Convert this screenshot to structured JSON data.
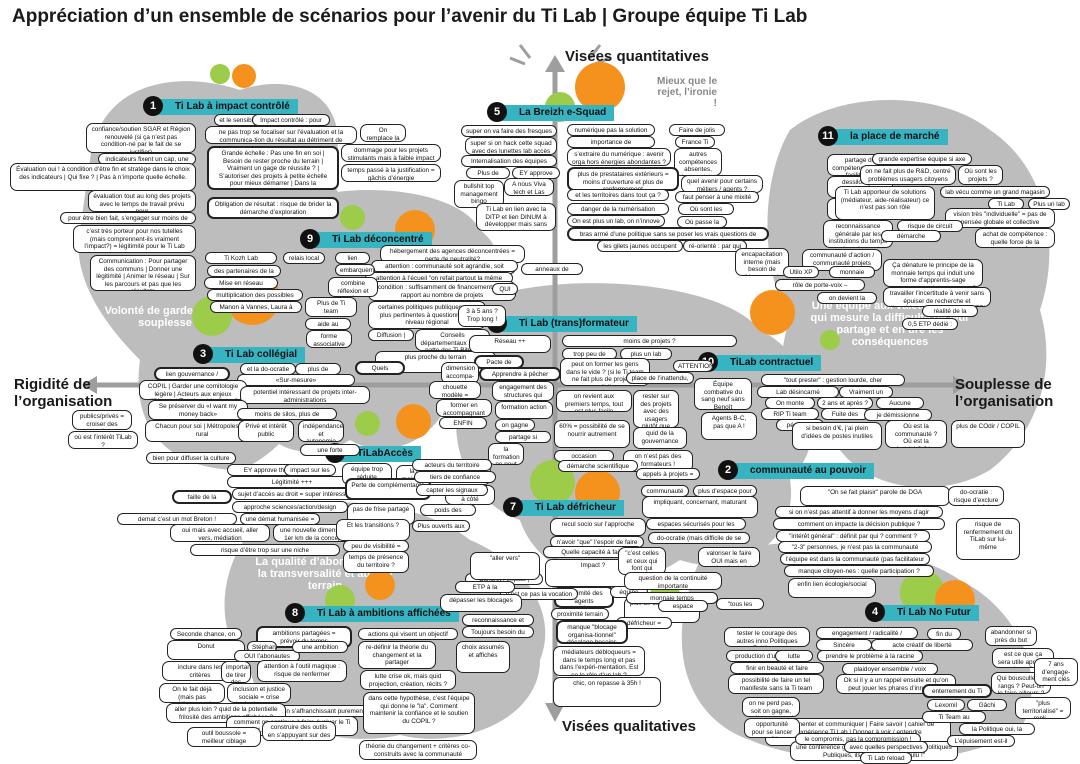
{
  "title": "Appréciation d’un ensemble de scénarios pour l’avenir du Ti Lab | Groupe équipe Ti Lab",
  "axes": {
    "top": "Visées quantitatives",
    "bottom": "Visées qualitatives",
    "left": "Rigidité de l’organisation",
    "right": "Souplesse de l’organisation"
  },
  "colors": {
    "orange": "#f5921e",
    "green": "#9ccc4a",
    "cyan": "#37b4c2",
    "gray": "#bdbdbd"
  },
  "overlays": {
    "volonte": "Volonté de garder de la souplesse",
    "qualite": "La qualité d’abord, grâce à la transversalité et au lien terrain",
    "equipe": "Une équipe aux valeurs fortes qui mesure la difficulté de leur partage et en tire les conséquences",
    "mieux": "Mieux que le rejet, l’ironie !"
  },
  "scenarios": [
    {
      "n": "1",
      "label": "Ti Lab à impact contrôlé"
    },
    {
      "n": "2",
      "label": "communauté au pouvoir"
    },
    {
      "n": "3",
      "label": "Ti Lab collégial"
    },
    {
      "n": "4",
      "label": "Ti Lab No Futur"
    },
    {
      "n": "5",
      "label": "La Breizh e-Squad"
    },
    {
      "n": "6",
      "label": "TiLabAccès"
    },
    {
      "n": "7",
      "label": "Ti Lab défricheur"
    },
    {
      "n": "8",
      "label": "Ti Lab à ambitions affichées"
    },
    {
      "n": "9",
      "label": "Ti Lab déconcentré"
    },
    {
      "n": "10",
      "label": "TiLab contractuel"
    },
    {
      "n": "11",
      "label": "la place de marché"
    },
    {
      "n": "12",
      "label": "Ti Lab (trans)formateur"
    }
  ],
  "notes": [
    "confiance/soutien SGAR et Région renouvelé (si ça n’est pas condition-né par le fait de se justifier)",
    "indicateurs fixent un cap, une orientation",
    "Évaluation oui ! à condition d’être fin et stratège dans le choix des indicateurs | Qui fixe ? | Pas à n’importe quelle échelle.",
    "évaluation tout au long des projets avec le temps de travail prévu pour",
    "pour être bien fait, s’engager sur moins de projets",
    "c’est très porteur pour nos tutelles (mais comprennent-ils vraiment l’impact?) = légitimité pour le Ti Lab",
    "Communication : Pour partager des communs | Donner une légitimité | Animer le réseau | Sur les parcours et pas que les résultats",
    "et le sensible dans tout ça ?",
    "Impact contrôlé : pour qui ? liberté ?",
    "ne pas trop se focaliser sur l’évaluation et la communica-tion du résultat au détriment de l’exploration",
    "On remplace la tranche",
    "Grande échelle : Pas une fin en soi | Besoin de rester proche du terrain | Vraiment un gage de réussite ? | S’autoriser des projets à petite échelle pour mieux démarrer | Dans la différenciation | Pas armé",
    "dommage pour les projets stimulants mais à faible impact",
    "temps passé à la justification = gâchis d’énergie",
    "Obligation de résultat : risque de brider la démarche d’exploration",
    "super on va faire des fresques !",
    "super si on hack cette squad avec des lunettes lab accès",
    "Internalisation des équipes",
    "Plus de prise de tête",
    "EY approve this !",
    "bullshit top management bingo",
    "A nous Viva tech et Las Vegas",
    "Ti Lab en lien avec la DITP et lien DINUM à développer mais sans se perdre",
    "numérique pas la solution à tout",
    "Faire de jolis sites ?",
    "importance de l’observation sur le terrain",
    "France Ti Lab",
    "s’extraire du numérique : avenir orga hors énergies abondantes ?",
    "autres compétences absentes, dont sociales",
    "plus de prestataires extérieurs = moins d’ouverture et plus de renfermement",
    "quel avenir pour certains métiers / agents ?",
    "et les territoires dans tout ça ?",
    "faut penser à une mixité autre",
    "danger de la numérisation massive",
    "Où sont les gens ?",
    "On est plus un lab, on n’innove plus,",
    "Où passe la Ti Team ?",
    "bras armé d’une politique sans se poser les vrais questions de terrain",
    "les gilets jaunes occupent le Ti Lab",
    "ré-orienté : par qui ?",
    "partage de compétences sur la facilitation",
    "dessilotage / coopérations publiques",
    "sécuriser l’implication des pros de l’action publique",
    "reconnaissance générale par les institutions du temps passé sur les projets d’innovation",
    "grande expertise équipe si axe unique",
    "on ne fait plus de R&D, centré problèmes usagers citoyens",
    "Où sont les projets ?",
    "Ti Lab apporteur de solutions (médiateur, aide-réalisateur) ce n’est pas son rôle",
    "lab vécu comme un grand magasin",
    "Ti Lab n’est pas Utilo",
    "Plus un lab",
    "vision très \"individuelle\" = pas de pensée globale et collective",
    "risque de circuit fermé",
    "achat de compétence : quelle force de la commu ?",
    "démarche obsolète",
    "encapacitation interne (mais besoin de l’éprouvette)",
    "communauté d’action / communauté projets",
    "Utilo XP !",
    "monnaie temps",
    "rôle de porte-voix – plaidoyer",
    "on devient la DITP",
    "Ça dénature le principe de la monnaie temps qui induit une forme d’apprentis-sage commun entre les gens, non ?",
    "travailler l’incertitude à venir sans épuiser de recherche et d’expérimentation ?! PASSEISTE!",
    "réalité de la régulation = le quoi ?!",
    "0,5 ETP dédié : qui ?",
    "hébergement des agences déconcentrées = perte de neutralité?",
    "quelle gouvernance ?",
    "attention : communauté soit agrandie, soit noyée",
    "attention à l’écueil \"on refait partout la même chose\"",
    "anneaux de Sauron",
    "condition : suffisamment de financements par rapport au nombre de projets",
    "QUI ?",
    "certaines politiques publiques sont plus pertinentes à questionner au niveau régional",
    "3 à 5 ans ? Trop long !",
    "Diffusion | Dissolution",
    "Conseils départementaux 3eme patte des Ti-Bihans",
    "plus proche du terrain",
    "Ti Kozh Lab",
    "relais local",
    "lien gouvernance",
    "des partenaires de la légitimité",
    "Mise en réseau",
    "embarquement des acteurs locaux",
    "multiplication des possibles",
    "combine réflexion et action",
    "Manon à Vannes, Laura à Brest !",
    "Plus de Ti team",
    "aide au passage à l’échelle",
    "forme associative",
    "et la do-ocratie ?",
    "plus de moyens, plus de Ti-team",
    "lien gouvernance / intérêt / connaissance du terrain",
    "«Sur-mesure»",
    "Quels \"devoirs aux membres\" ? Quelle implication ?",
    "COPIL | Garder une comitologie légère | Acteurs aux enjeux différents | Trop lourd à piloter ?",
    "potentiel intéressant de projets inter-administrations",
    "Se préserver du «I want my money back»",
    "moins de silos, plus de coopérations",
    "publics/privés = croiser des avancées en matière de responsabi-lité sociétale des organisations",
    "Chacun pour soi | Métropoles VS rural",
    "Privé et intérêt public",
    "indépendance et autonomie #BZH",
    "où est l’intérêt TiLab ?",
    "une forte légitimité",
    "bien pour diffuser la culture \"lab\" : le centré usagers",
    "Réseau ++",
    "Pacte de transformation",
    "Apprendre à pêcher",
    "dimension accompa-gnateurs de projets",
    "chouette modèle = INNO->TRANSFO",
    "former en accompagnant",
    "ENFIN formation des agents avec nouveaux enjeux",
    "engagement des structures qui envoient les agents",
    "formation action",
    "on gagne en légitimité",
    "partage si formation = transformation",
    "la formation ne peut être qu’une des dimensions du Ti Lab",
    "moins de projets ?",
    "trop peu de terrain",
    "plus un lab",
    "ATTENTION à ne pas faire porter aux agents ce dont ils ne sont pas responsables",
    "peut on former les gens dans le vide ? (si le Ti team ne fait plus de projets à côté)",
    "on revient aux premiers temps, tout est plus facile",
    "rester sur des projets avec des usagers plutôt que de faire du dépannage interne",
    "60% = possibilité de se nourrir autrement",
    "quid de la gouvernance",
    "occasion réflexion plus large sur le travail",
    "on n’est pas des formateurs !",
    "démarche scientifique",
    "EY approve this !",
    "impact sur les politiques publiques",
    "Légitimité +++",
    "faille de la numérisation reconnue",
    "sujet d’accès au droit = super intéressant",
    "approche sciences/action/design reconnue",
    "demat c’est un mot Breton !",
    "une démat humanisée = des humains non dématérialisés",
    "oui mais avec accueil, aller vers, médiation",
    "une nouvelle dimension du 1er km de la conception",
    "risque d’être trop sur une niche",
    "équipe trop réduite (projets, chercheurs, designers, doc…)",
    "la démarche lab devient moins importante que le sujet",
    "Perte de complémentarité",
    "C’est passer à côté d’enjeux primordiaux",
    "pas de frise partagé",
    "poids des résultats? Vs capacité à faire savoir, diffuser",
    "Et les transitions ?",
    "Plus ouverts aux autres besoins des usagers",
    "peu de visibilité = peu de légitimité à faire ricochet",
    "temps de présence du territoire ?",
    "recul socio sur l’approche",
    "n’avoir \"que\" l’espoir de faire bouger les choses risque de ne pas être très efficace…",
    "Quelle capacité à faire remonter ?",
    "Impact ?",
    "légitimité des agents partenaires non intégrés",
    "équipe trop petite",
    "plus de documentation",
    "proximité terrain | 1er km",
    "défricheur = ouvre des voies, ose",
    "Concret | Impact | terreau fertile",
    "n’est ce pas la vocation d’un lab que de tester sur des petites échelles ?",
    "acteurs du territoire",
    "tiers de confiance",
    "capter les signaux faibles",
    "\"aller vers\"",
    "ETP à la coordination",
    "dépasser les blocages",
    "reconnaissance et coopération des autres admins",
    "Toujours besoin du lieu et de la communauté",
    "manque \"blocage organisa-tionnel\" décalage besoins ETP et versements financiers",
    "médiateurs débloqueurs = dans le temps long et pas dans l’expéri-mentation. Est ce le rôle d’un lab ?",
    "chic, on repasse à 35h !",
    "place de l’inattendu, plus de liberté en dehors du lab",
    "Équipe combative du sang neuf sans Benoît",
    "Agents B-C, pas que A !",
    "appels à projets = solutions VS lab = problèmes",
    "\"tout prester\" : gestion lourde, cher",
    "Lab désincarné",
    "Vraiment un lab ?",
    "On monte notre boîte",
    "2 ans et après ?",
    "Aucune ambition",
    "RIP Ti team",
    "Fuite des compétences",
    "je démissionne",
    "pérennité des missions pas tenable face à l’évolution des enjeux = RIDICULE !!",
    "si besoin d’€, j’ai plein d’idées de postes inutiles",
    "Où est la communauté ? Où est la créativité ? Où est la stimulation ?",
    "plus de COdir / COPIL",
    "communauté = partage",
    "plus d’espace pour les membres de la communauté de s’exprimer sur les projets",
    "impliquant, concernant, maturant",
    "espaces sécurisés pour les chercheurs et agents",
    "do-ocratie (mais difficile de se saisir du TiLab)",
    "\"c’est celles et ceux qui font qui savent\"",
    "valoriser le faire OUI mais en gardant le droit à l’erreur",
    "question de la continuité importante",
    "monnaie temps",
    "espace neutre",
    "\"tous les niveaux\" = risque de perte de légitimité si disparition de la confiance des institutions (Etat-Région et +)",
    "\"On se fait plaisir\" parole de DGA",
    "do-ocratie : risque d’exclure si savoir faire non partagé, transmis",
    "si on n’est pas attentif à donner les moyens d’agir",
    "comment on impacte la décision publique ?",
    "\"intérêt général\" : définit par qui ? comment ? Temps disponible de chacun vs intérêt",
    "risque de renfermement du TiLab sur lui-même",
    "\"2-3\" personnes, je n’est pas la communauté",
    "l’équipe est dans la communauté (pas facilitateur en dehors)",
    "manque citoyen-nes : quelle participation ?",
    "enfin lien écologie/social",
    "Seconde chance, on est clairs mais on laisse des ouvertures",
    "ambitions partagées = prévoir du temps",
    "actions qui visent un objectif partagé",
    "Donut",
    "Stéphane Vincent inside",
    "OUI l’abonautes",
    "une ambition qui dépasse les limites administratives",
    "inclure dans les critères",
    "important de tirer des choses des erreurs ou égarements",
    "attention à l’outil magique : risque de renfermer",
    "re-définir la théorie du changement et la partager",
    "lutte crise ok, mais quid projection, création, récits ?",
    "choix assumés et affichés",
    "On le fait déjà (mais pas publiquement)",
    "inclusion et justice sociale = crise écologique = non dissocié",
    "souplesse libérée en s’affranchissant purement du commanditaire",
    "aller plus loin ? quid de la potentielle frilosité des ambitions affichées ?",
    "comment on continue à faire évoluer le Ti Lab, risque de trop figer",
    "dans cette hypothèse, c’est l’équipe qui donne le \"la\". Comment maintenir la confiance et le soutien du COPIL ?",
    "outil boussole = meilleur ciblage",
    "construire des outils en s’appuyant sur des complices",
    "théorie du changement + critères co-construits avec la communauté",
    "tester le courage des autres inno Politiques Publiques",
    "engagement / radicalité / territorialité",
    "Sincère",
    "acte créatif de liberté",
    "fin du dialogue",
    "abandonner si près du but",
    "est ce que ça sera utile après le buzz ?",
    "production d’un manifeste",
    "lutte radicale",
    "prendre le problème à la racine",
    "finir en beauté et faire avancer la cause",
    "plaidoyer ensemble / voix collective",
    "possibilité de faire un tel manifeste sans la Ti team",
    "Ok si il y a un rappel ensuite et qu’on peut jouer les phares d’innovation",
    "Qui bousculle les rangs ? Peut-on le faire ailleurs ?",
    "7 ans d’engage-ment clés de ma vie pour ça…",
    "on ne perd pas, soit on gagne, soit on apprend",
    "Documenter et communiquer | Faire savoir | cahier de l’expérience Ti Lab | Donner à voir / entendre",
    "enterrement du Ti Lab",
    "opportunité pour se lancer en politique",
    "une conférence gesticulée, \"L’innovation des Politiques Publiques, ils n’en n’ont pas voulu !\"",
    "Lexomil",
    "Gâchi",
    "\"plus territorialisé\" = repli…",
    "Ti Team au chômage",
    "la Politique oui, la politique non",
    "le compromis, pas la compromission !",
    "avec quelles perspectives ?",
    "L’épuisement est-il possible ?",
    "Ti Lab reload"
  ]
}
